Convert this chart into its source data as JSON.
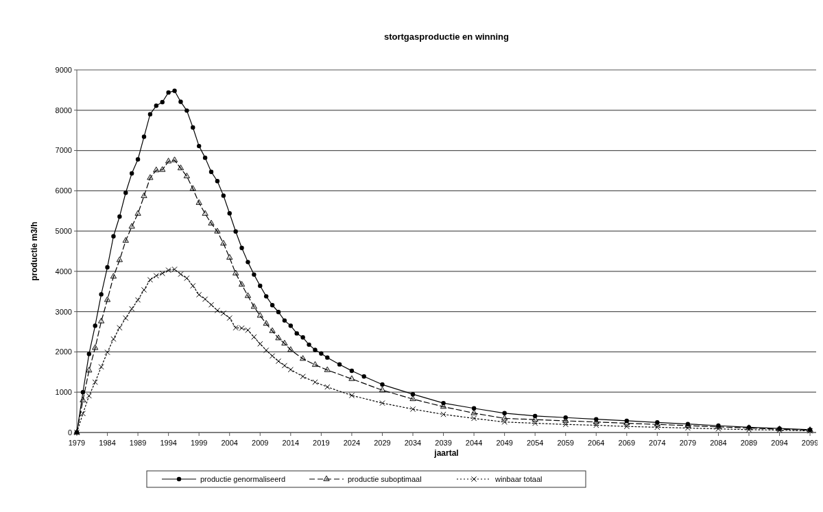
{
  "chart_data": {
    "type": "line",
    "title": "stortgasproductie en winning",
    "xlabel": "jaartal",
    "ylabel": "productie m3/h",
    "xlim": [
      1979,
      2100
    ],
    "xticks": [
      1979,
      1984,
      1989,
      1994,
      1999,
      2004,
      2009,
      2014,
      2019,
      2024,
      2029,
      2034,
      2039,
      2044,
      2049,
      2054,
      2059,
      2064,
      2069,
      2074,
      2079,
      2084,
      2089,
      2094,
      2099
    ],
    "ylim": [
      0,
      9000
    ],
    "yticks": [
      0,
      1000,
      2000,
      3000,
      4000,
      5000,
      6000,
      7000,
      8000,
      9000
    ],
    "grid": "y",
    "legend": "bottom",
    "series": [
      {
        "name": "productie genormaliseerd",
        "color": "#000000",
        "marker": "circle",
        "line_style": "solid",
        "x": [
          1979,
          1980,
          1981,
          1982,
          1983,
          1984,
          1985,
          1986,
          1987,
          1988,
          1989,
          1990,
          1991,
          1992,
          1993,
          1994,
          1995,
          1996,
          1997,
          1998,
          1999,
          2000,
          2001,
          2002,
          2003,
          2004,
          2005,
          2006,
          2007,
          2008,
          2009,
          2010,
          2011,
          2012,
          2013,
          2014,
          2015,
          2016,
          2017,
          2018,
          2019,
          2020,
          2022,
          2024,
          2026,
          2029,
          2034,
          2039,
          2044,
          2049,
          2054,
          2059,
          2064,
          2069,
          2074,
          2079,
          2084,
          2089,
          2094,
          2099
        ],
        "values": [
          0,
          1000,
          1950,
          2650,
          3430,
          4100,
          4870,
          5360,
          5950,
          6430,
          6780,
          7340,
          7900,
          8110,
          8200,
          8440,
          8480,
          8210,
          7990,
          7570,
          7110,
          6820,
          6470,
          6240,
          5880,
          5440,
          4990,
          4580,
          4230,
          3920,
          3640,
          3380,
          3160,
          2990,
          2780,
          2650,
          2460,
          2360,
          2180,
          2050,
          1960,
          1860,
          1690,
          1530,
          1390,
          1190,
          950,
          730,
          600,
          480,
          410,
          370,
          330,
          290,
          250,
          210,
          170,
          130,
          100,
          70
        ]
      },
      {
        "name": "productie suboptimaal",
        "color": "#000000",
        "marker": "triangle",
        "line_style": "dashed",
        "x": [
          1979,
          1980,
          1981,
          1982,
          1983,
          1984,
          1985,
          1986,
          1987,
          1988,
          1989,
          1990,
          1991,
          1992,
          1993,
          1994,
          1995,
          1996,
          1997,
          1998,
          1999,
          2000,
          2001,
          2002,
          2003,
          2004,
          2005,
          2006,
          2007,
          2008,
          2009,
          2010,
          2011,
          2012,
          2013,
          2014,
          2016,
          2018,
          2020,
          2024,
          2029,
          2034,
          2039,
          2044,
          2049,
          2054,
          2059,
          2064,
          2069,
          2074,
          2079,
          2084,
          2089,
          2094,
          2099
        ],
        "values": [
          0,
          800,
          1540,
          2100,
          2760,
          3290,
          3870,
          4280,
          4760,
          5110,
          5430,
          5870,
          6320,
          6510,
          6520,
          6730,
          6760,
          6560,
          6360,
          6050,
          5700,
          5430,
          5190,
          4990,
          4690,
          4340,
          3950,
          3670,
          3390,
          3120,
          2900,
          2700,
          2520,
          2340,
          2210,
          2050,
          1830,
          1680,
          1550,
          1330,
          1050,
          830,
          640,
          480,
          350,
          320,
          290,
          260,
          230,
          200,
          170,
          140,
          110,
          80,
          60
        ]
      },
      {
        "name": "winbaar totaal",
        "color": "#000000",
        "marker": "cross",
        "line_style": "dotted",
        "x": [
          1979,
          1980,
          1981,
          1982,
          1983,
          1984,
          1985,
          1986,
          1987,
          1988,
          1989,
          1990,
          1991,
          1992,
          1993,
          1994,
          1995,
          1996,
          1997,
          1998,
          1999,
          2000,
          2001,
          2002,
          2003,
          2004,
          2005,
          2006,
          2007,
          2008,
          2009,
          2010,
          2011,
          2012,
          2013,
          2014,
          2016,
          2018,
          2020,
          2024,
          2029,
          2034,
          2039,
          2044,
          2049,
          2054,
          2059,
          2064,
          2069,
          2074,
          2079,
          2084,
          2089,
          2094,
          2099
        ],
        "values": [
          0,
          470,
          910,
          1250,
          1630,
          1990,
          2320,
          2600,
          2840,
          3070,
          3290,
          3540,
          3790,
          3890,
          3950,
          4030,
          4050,
          3930,
          3830,
          3640,
          3420,
          3310,
          3170,
          3030,
          2960,
          2840,
          2600,
          2590,
          2540,
          2370,
          2200,
          2040,
          1900,
          1770,
          1660,
          1560,
          1390,
          1250,
          1130,
          920,
          730,
          580,
          450,
          350,
          260,
          230,
          200,
          180,
          150,
          130,
          110,
          90,
          70,
          60,
          40
        ]
      }
    ]
  }
}
